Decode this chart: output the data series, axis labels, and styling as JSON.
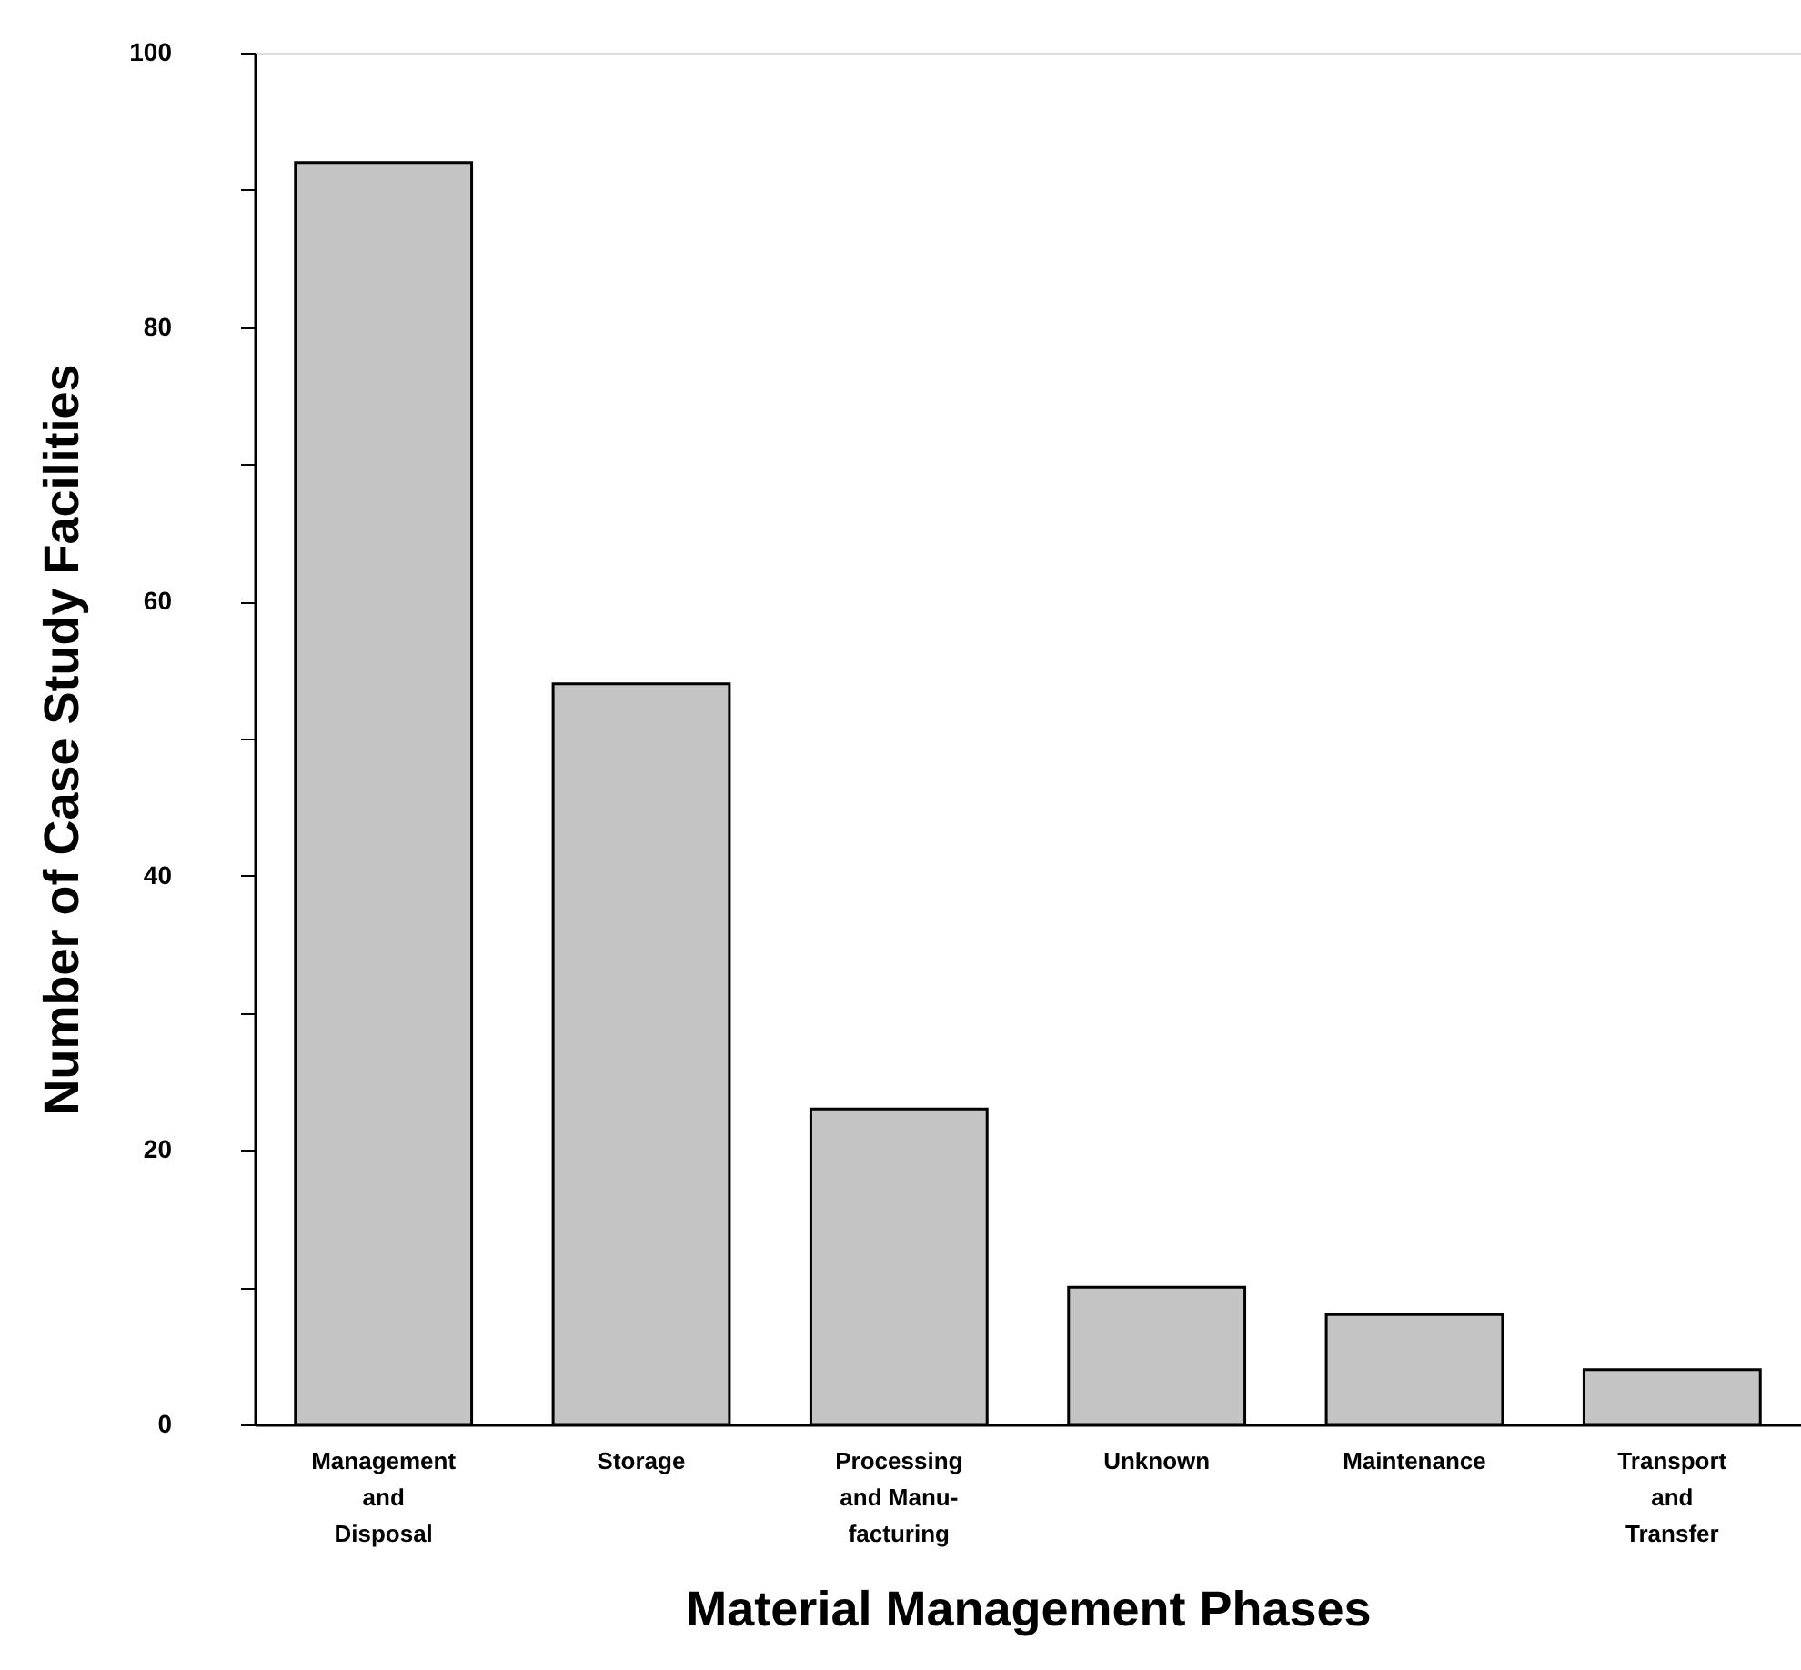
{
  "chart_data": {
    "type": "bar",
    "xlabel": "Material Management Phases",
    "ylabel": "Number of Case Study Facilities",
    "categories": [
      "Management\nand\nDisposal",
      "Storage",
      "Processing\nand Manu-\nfacturing",
      "Unknown",
      "Maintenance",
      "Transport\nand\nTransfer"
    ],
    "values": [
      92,
      54,
      23,
      10,
      8,
      4
    ],
    "color": "#c4c4c4",
    "ylim": [
      0,
      100
    ],
    "yticks": [
      0,
      {
        "value": 10,
        "label": null
      },
      20,
      {
        "value": 30,
        "label": null
      },
      40,
      {
        "value": 50,
        "label": null
      },
      60,
      {
        "value": 70,
        "label": null
      },
      80,
      {
        "value": 90,
        "label": null
      },
      100
    ],
    "grid": false
  }
}
